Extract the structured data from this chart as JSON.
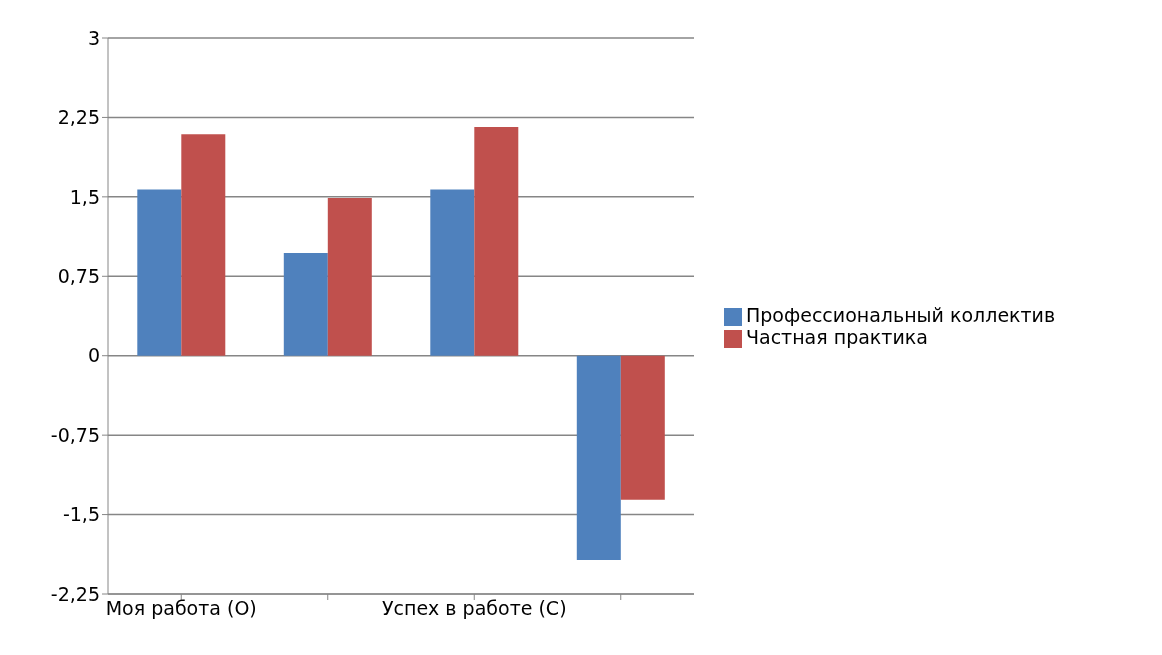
{
  "chart_data": {
    "type": "bar",
    "categories": [
      "Моя работа (О)",
      null,
      "Успех в работе (С)",
      null
    ],
    "series": [
      {
        "name": "Профессиональный коллектив",
        "color": "#4f81bd",
        "values": [
          1.57,
          0.97,
          1.57,
          -1.93
        ]
      },
      {
        "name": "Частная практика",
        "color": "#c0504d",
        "values": [
          2.09,
          1.49,
          2.16,
          -1.36
        ]
      }
    ],
    "ylim": [
      -2.25,
      3
    ],
    "yticks": [
      {
        "value": -2.25,
        "label": "-2,25"
      },
      {
        "value": -1.5,
        "label": "-1,5"
      },
      {
        "value": -0.75,
        "label": "-0,75"
      },
      0,
      {
        "value": 0.75,
        "label": "0,75"
      },
      {
        "value": 1.5,
        "label": "1,5"
      },
      {
        "value": 2.25,
        "label": "2,25"
      },
      3
    ],
    "grid": "y",
    "legend": "right"
  }
}
